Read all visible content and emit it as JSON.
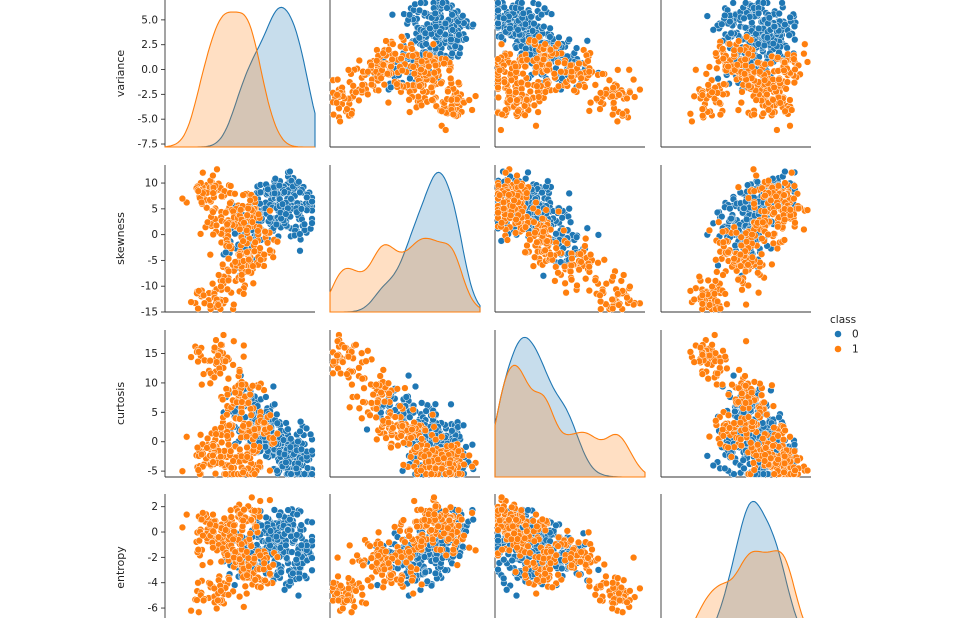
{
  "chart_data": {
    "type": "scatter",
    "subtype": "pairplot",
    "variables": [
      "variance",
      "skewness",
      "curtosis",
      "entropy"
    ],
    "variable_ranges": {
      "variance": [
        -7.8,
        7.0
      ],
      "skewness": [
        -15,
        13.5
      ],
      "curtosis": [
        -6,
        19
      ],
      "entropy": [
        -8.6,
        3.0
      ]
    },
    "row_ticks": {
      "variance": [
        "-7.5",
        "-5.0",
        "-2.5",
        "0.0",
        "2.5",
        "5.0"
      ],
      "skewness": [
        "-15",
        "-10",
        "-5",
        "0",
        "5",
        "10"
      ],
      "curtosis": [
        "-5",
        "0",
        "5",
        "10",
        "15"
      ],
      "entropy": [
        "-6",
        "-4",
        "-2",
        "0",
        "2"
      ]
    },
    "hue": "class",
    "legend": {
      "title": "class",
      "entries": [
        {
          "label": "0",
          "color": "#1f77b4"
        },
        {
          "label": "1",
          "color": "#ff7f0e"
        }
      ],
      "position": "right"
    },
    "series": [
      {
        "name": "0",
        "color": "#1f77b4",
        "centroids": [
          {
            "variance": 2.8,
            "skewness": 7.0,
            "curtosis": 0.5,
            "entropy": -0.5
          },
          {
            "variance": 4.0,
            "skewness": 9.0,
            "curtosis": -2.5,
            "entropy": 0.5
          },
          {
            "variance": 1.5,
            "skewness": 3.0,
            "curtosis": 3.0,
            "entropy": -1.5
          },
          {
            "variance": 4.5,
            "skewness": 3.0,
            "curtosis": -1.0,
            "entropy": -3.0
          },
          {
            "variance": 0.5,
            "skewness": -3.0,
            "curtosis": 6.0,
            "entropy": -2.0
          },
          {
            "variance": 5.5,
            "skewness": 6.0,
            "curtosis": -3.5,
            "entropy": -1.0
          }
        ]
      },
      {
        "name": "1",
        "color": "#ff7f0e",
        "centroids": [
          {
            "variance": -1.5,
            "skewness": 2.0,
            "curtosis": 0.0,
            "entropy": -0.5
          },
          {
            "variance": -3.5,
            "skewness": 8.0,
            "curtosis": -3.0,
            "entropy": 0.0
          },
          {
            "variance": -0.5,
            "skewness": -6.0,
            "curtosis": 8.0,
            "entropy": -2.0
          },
          {
            "variance": -2.5,
            "skewness": -11.0,
            "curtosis": 14.0,
            "entropy": -5.0
          },
          {
            "variance": 0.0,
            "skewness": 5.0,
            "curtosis": -4.0,
            "entropy": 1.0
          },
          {
            "variance": 1.5,
            "skewness": -2.0,
            "curtosis": 2.0,
            "entropy": -3.0
          }
        ]
      }
    ],
    "diagonal": "kde",
    "grid": false
  }
}
